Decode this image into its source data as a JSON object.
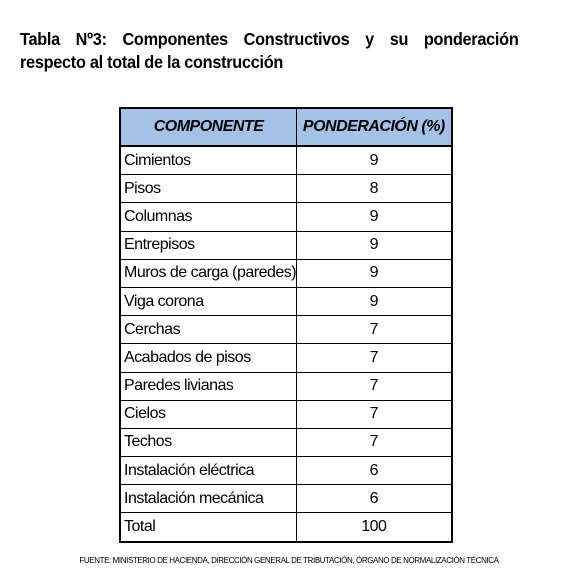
{
  "caption": "Tabla Nº3: Componentes Constructivos y su ponderación respecto al total de la construcción",
  "table": {
    "headers": [
      "COMPONENTE",
      "PONDERACIÓN (%)"
    ],
    "rows": [
      {
        "componente": "Cimientos",
        "ponderacion": "9"
      },
      {
        "componente": "Pisos",
        "ponderacion": "8"
      },
      {
        "componente": "Columnas",
        "ponderacion": "9"
      },
      {
        "componente": "Entrepisos",
        "ponderacion": "9"
      },
      {
        "componente": "Muros de carga (paredes)",
        "ponderacion": "9"
      },
      {
        "componente": "Viga corona",
        "ponderacion": "9"
      },
      {
        "componente": "Cerchas",
        "ponderacion": "7"
      },
      {
        "componente": "Acabados de pisos",
        "ponderacion": "7"
      },
      {
        "componente": "Paredes livianas",
        "ponderacion": "7"
      },
      {
        "componente": "Cielos",
        "ponderacion": "7"
      },
      {
        "componente": "Techos",
        "ponderacion": "7"
      },
      {
        "componente": "Instalación eléctrica",
        "ponderacion": "6"
      },
      {
        "componente": "Instalación mecánica",
        "ponderacion": "6"
      },
      {
        "componente": "Total",
        "ponderacion": "100"
      }
    ],
    "header_color": "#a4c2e6"
  },
  "source": "FUENTE: MINISTERIO DE HACIENDA, DIRECCIÓN GENERAL DE TRIBUTACIÓN, ÓRGANO DE NORMALIZACIÓN TÉCNICA"
}
